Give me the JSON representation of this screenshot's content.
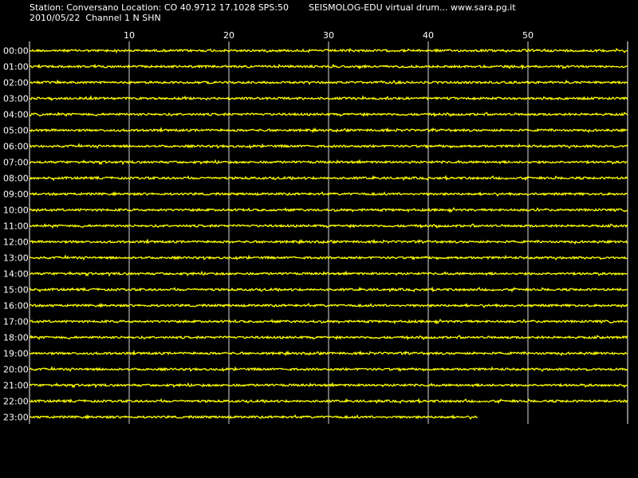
{
  "header": {
    "station_line": "Station: Conversano Location: CO 40.9712 17.1028 SPS:50",
    "date_line": "2010/05/22  Channel 1 N SHN",
    "app_line": "SEISMOLOG-EDU virtual drum... www.sara.pg.it"
  },
  "colors": {
    "background": "#000000",
    "trace": "#ffff00",
    "grid": "#ffffff",
    "text": "#ffffff"
  },
  "chart_data": {
    "type": "line",
    "title": "",
    "xlabel": "",
    "ylabel": "",
    "x_unit_range": [
      0,
      60
    ],
    "x_ticks": [
      10,
      20,
      30,
      40,
      50
    ],
    "grid": true,
    "rows": [
      {
        "label": "00:00",
        "end_minute": 60
      },
      {
        "label": "01:00",
        "end_minute": 60
      },
      {
        "label": "02:00",
        "end_minute": 60
      },
      {
        "label": "03:00",
        "end_minute": 60
      },
      {
        "label": "04:00",
        "end_minute": 60
      },
      {
        "label": "05:00",
        "end_minute": 60
      },
      {
        "label": "06:00",
        "end_minute": 60
      },
      {
        "label": "07:00",
        "end_minute": 60
      },
      {
        "label": "08:00",
        "end_minute": 60
      },
      {
        "label": "09:00",
        "end_minute": 60
      },
      {
        "label": "10:00",
        "end_minute": 60
      },
      {
        "label": "11:00",
        "end_minute": 60
      },
      {
        "label": "12:00",
        "end_minute": 60
      },
      {
        "label": "13:00",
        "end_minute": 60
      },
      {
        "label": "14:00",
        "end_minute": 60
      },
      {
        "label": "15:00",
        "end_minute": 60
      },
      {
        "label": "16:00",
        "end_minute": 60
      },
      {
        "label": "17:00",
        "end_minute": 60
      },
      {
        "label": "18:00",
        "end_minute": 60
      },
      {
        "label": "19:00",
        "end_minute": 60
      },
      {
        "label": "20:00",
        "end_minute": 60
      },
      {
        "label": "21:00",
        "end_minute": 60
      },
      {
        "label": "22:00",
        "end_minute": 60
      },
      {
        "label": "23:00",
        "end_minute": 45
      }
    ]
  }
}
